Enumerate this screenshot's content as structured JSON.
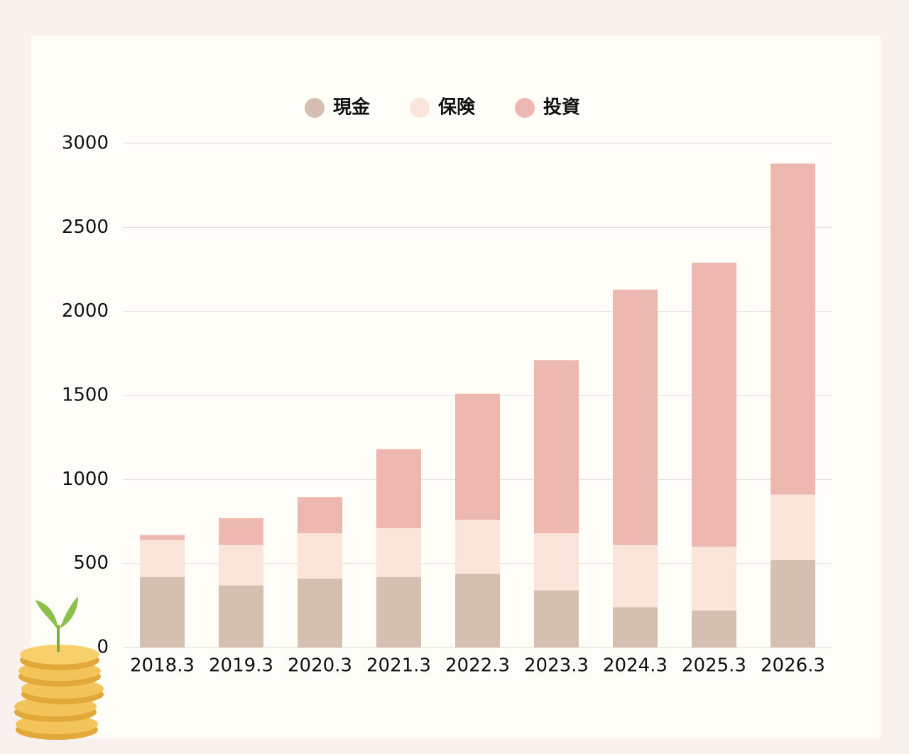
{
  "chart_data": {
    "type": "stacked_bar",
    "categories": [
      "2018.3",
      "2019.3",
      "2020.3",
      "2021.3",
      "2022.3",
      "2023.3",
      "2024.3",
      "2025.3",
      "2026.3"
    ],
    "series": [
      {
        "name": "現金",
        "color": "#d4bfb1",
        "values": [
          420,
          370,
          410,
          420,
          440,
          340,
          240,
          220,
          520
        ]
      },
      {
        "name": "保険",
        "color": "#fbe5da",
        "values": [
          220,
          240,
          270,
          290,
          320,
          340,
          370,
          380,
          390
        ]
      },
      {
        "name": "投資",
        "color": "#ecb8b0",
        "values": [
          30,
          160,
          215,
          470,
          750,
          1030,
          1520,
          1690,
          1970
        ]
      }
    ],
    "ylim": [
      0,
      3000
    ],
    "yticks": [
      0,
      500,
      1000,
      1500,
      2000,
      2500,
      3000
    ],
    "grid": true,
    "legend": "top"
  }
}
